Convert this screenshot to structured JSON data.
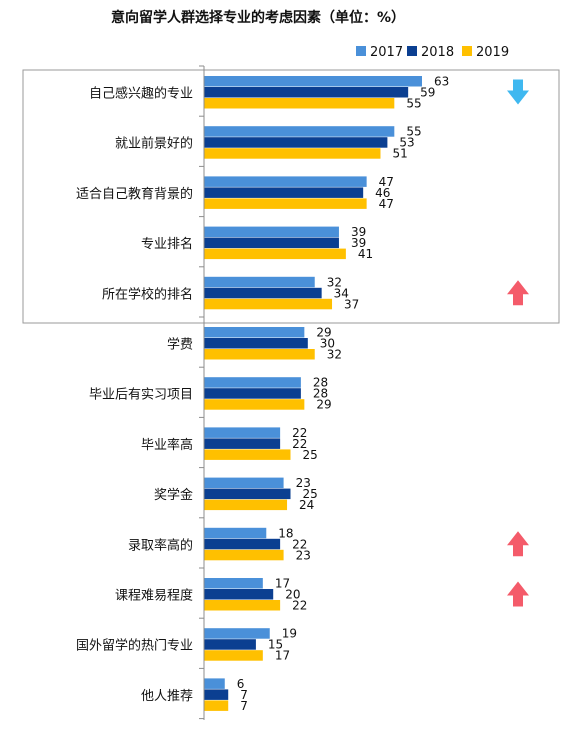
{
  "chart_data": {
    "type": "bar",
    "orientation": "horizontal",
    "title": "意向留学人群选择专业的考虑因素（单位：%）",
    "categories": [
      "自己感兴趣的专业",
      "就业前景好的",
      "适合自己教育背景的",
      "专业排名",
      "所在学校的排名",
      "学费",
      "毕业后有实习项目",
      "毕业率高",
      "奖学金",
      "录取率高的",
      "课程难易程度",
      "国外留学的热门专业",
      "他人推荐"
    ],
    "series": [
      {
        "name": "2017",
        "color": "#4a90d9",
        "values": [
          63,
          55,
          47,
          39,
          32,
          29,
          28,
          22,
          23,
          18,
          17,
          19,
          6
        ]
      },
      {
        "name": "2018",
        "color": "#0b3f91",
        "values": [
          59,
          53,
          46,
          39,
          34,
          30,
          28,
          22,
          25,
          22,
          20,
          15,
          7
        ]
      },
      {
        "name": "2019",
        "color": "#ffc000",
        "values": [
          55,
          51,
          47,
          41,
          37,
          32,
          29,
          25,
          24,
          23,
          22,
          17,
          7
        ]
      }
    ],
    "xlim": [
      0,
      70
    ],
    "legend_position": "top-right",
    "grid": false,
    "highlight_box": {
      "categories": [
        "自己感兴趣的专业",
        "就业前景好的",
        "适合自己教育背景的",
        "专业排名",
        "所在学校的排名"
      ]
    },
    "annotations": [
      {
        "category": "自己感兴趣的专业",
        "arrow": "down",
        "color": "#3fb8f0"
      },
      {
        "category": "所在学校的排名",
        "arrow": "up",
        "color": "#f45b6a"
      },
      {
        "category": "录取率高的",
        "arrow": "up",
        "color": "#f45b6a"
      },
      {
        "category": "课程难易程度",
        "arrow": "up",
        "color": "#f45b6a"
      }
    ]
  }
}
